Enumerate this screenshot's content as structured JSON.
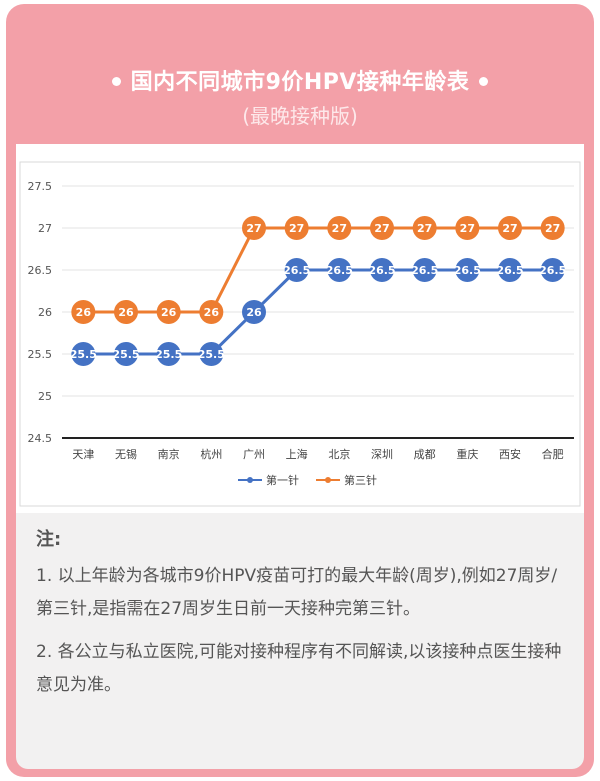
{
  "header": {
    "title": "国内不同城市9价HPV接种年龄表",
    "subtitle": "(最晚接种版)"
  },
  "chart_data": {
    "type": "line",
    "categories": [
      "天津",
      "无锡",
      "南京",
      "杭州",
      "广州",
      "上海",
      "北京",
      "深圳",
      "成都",
      "重庆",
      "西安",
      "合肥"
    ],
    "series": [
      {
        "name": "第一针",
        "color": "#4472c4",
        "values": [
          25.5,
          25.5,
          25.5,
          25.5,
          26,
          26.5,
          26.5,
          26.5,
          26.5,
          26.5,
          26.5,
          26.5
        ]
      },
      {
        "name": "第三针",
        "color": "#ed7d31",
        "values": [
          26,
          26,
          26,
          26,
          27,
          27,
          27,
          27,
          27,
          27,
          27,
          27
        ]
      }
    ],
    "ylim": [
      24.5,
      27.5
    ],
    "yticks": [
      "24.5",
      "25",
      "25.5",
      "26",
      "26.5",
      "27",
      "27.5"
    ],
    "grid": true,
    "legend": "bottom"
  },
  "notes": {
    "heading": "注:",
    "item1": "1. 以上年龄为各城市9价HPV疫苗可打的最大年龄(周岁),例如27周岁/第三针,是指需在27周岁生日前一天接种完第三针。",
    "item2": "2. 各公立与私立医院,可能对接种程序有不同解读,以该接种点医生接种意见为准。"
  }
}
